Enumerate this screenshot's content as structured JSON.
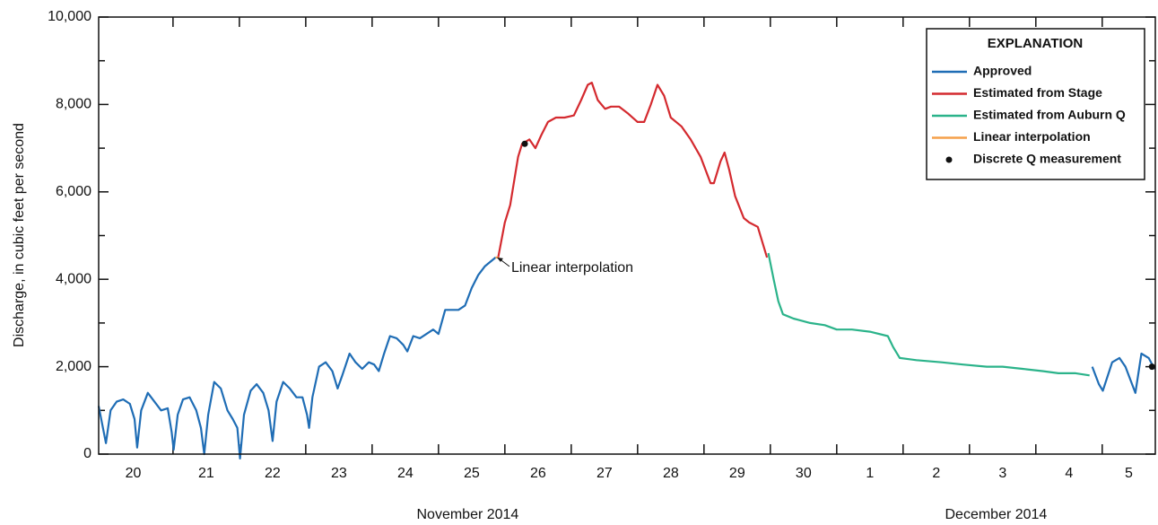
{
  "chart_data": {
    "type": "line",
    "y_label": "Discharge, in cubic feet per second",
    "x_groups": [
      "November 2014",
      "December 2014"
    ],
    "xlim": [
      19.88,
      35.8
    ],
    "xticks": [
      21,
      22,
      23,
      24,
      25,
      26,
      27,
      28,
      29,
      30,
      31,
      32,
      33,
      34,
      35
    ],
    "xtick_labels": [
      {
        "value": 20.4,
        "label": "20"
      },
      {
        "value": 21.5,
        "label": "21"
      },
      {
        "value": 22.5,
        "label": "22"
      },
      {
        "value": 23.5,
        "label": "23"
      },
      {
        "value": 24.5,
        "label": "24"
      },
      {
        "value": 25.5,
        "label": "25"
      },
      {
        "value": 26.5,
        "label": "26"
      },
      {
        "value": 27.5,
        "label": "27"
      },
      {
        "value": 28.5,
        "label": "28"
      },
      {
        "value": 29.5,
        "label": "29"
      },
      {
        "value": 30.5,
        "label": "30"
      },
      {
        "value": 31.5,
        "label": "1"
      },
      {
        "value": 32.5,
        "label": "2"
      },
      {
        "value": 33.5,
        "label": "3"
      },
      {
        "value": 34.5,
        "label": "4"
      },
      {
        "value": 35.4,
        "label": "5"
      }
    ],
    "ylim": [
      0,
      10000
    ],
    "yticks": [
      0,
      {
        "value": 2000,
        "label": "2,000"
      },
      {
        "value": 4000,
        "label": "4,000"
      },
      {
        "value": 6000,
        "label": "6,000"
      },
      {
        "value": 8000,
        "label": "8,000"
      },
      {
        "value": 10000,
        "label": "10,000"
      }
    ],
    "yminor": [
      1000,
      3000,
      5000,
      7000,
      9000
    ],
    "legend_title": "EXPLANATION",
    "legend": "upper right",
    "annotation": {
      "text": "Linear interpolation",
      "x": 25.88,
      "y": 4500
    },
    "series": [
      {
        "name": "Approved",
        "color": "#1f6db5",
        "style": "line",
        "x": [
          19.88,
          19.99,
          20.06,
          20.15,
          20.25,
          20.35,
          20.42,
          20.46,
          20.52,
          20.62,
          20.72,
          20.82,
          20.92,
          20.98,
          21.01,
          21.07,
          21.15,
          21.25,
          21.35,
          21.42,
          21.47,
          21.53,
          21.62,
          21.72,
          21.82,
          21.9,
          21.97,
          22.01,
          22.07,
          22.17,
          22.26,
          22.36,
          22.44,
          22.5,
          22.56,
          22.66,
          22.76,
          22.86,
          22.95,
          23.02,
          23.05,
          23.1,
          23.2,
          23.3,
          23.4,
          23.48,
          23.55,
          23.66,
          23.75,
          23.85,
          23.95,
          24.03,
          24.1,
          24.18,
          24.27,
          24.37,
          24.47,
          24.53,
          24.62,
          24.72,
          24.82,
          24.92,
          25.0,
          25.1,
          25.3,
          25.4,
          25.5,
          25.6,
          25.7,
          25.86,
          34.8,
          34.85,
          34.95,
          35.01,
          35.15,
          35.26,
          35.35,
          35.45,
          35.5,
          35.59,
          35.7,
          35.77,
          35.8
        ],
        "values": [
          1100,
          250,
          1000,
          1200,
          1250,
          1150,
          800,
          150,
          1000,
          1400,
          1200,
          1000,
          1050,
          500,
          100,
          900,
          1250,
          1300,
          1000,
          600,
          0,
          900,
          1650,
          1500,
          1000,
          800,
          600,
          -100,
          900,
          1450,
          1600,
          1400,
          1000,
          300,
          1200,
          1650,
          1500,
          1300,
          1300,
          900,
          600,
          1300,
          2000,
          2100,
          1900,
          1500,
          1800,
          2300,
          2100,
          1950,
          2100,
          2050,
          1900,
          2300,
          2700,
          2650,
          2500,
          2350,
          2700,
          2650,
          2750,
          2850,
          2750,
          3300,
          3300,
          3400,
          3800,
          4100,
          4300,
          4500,
          null,
          2000,
          1600,
          1450,
          2100,
          2200,
          2000,
          1600,
          1400,
          2300,
          2200,
          2000,
          1950
        ]
      },
      {
        "name": "Estimated from Stage",
        "color": "#d42a2f",
        "style": "line",
        "x": [
          25.9,
          26.0,
          26.08,
          26.2,
          26.26,
          26.37,
          26.46,
          26.55,
          26.65,
          26.77,
          26.9,
          27.04,
          27.15,
          27.25,
          27.31,
          27.4,
          27.51,
          27.6,
          27.72,
          27.85,
          28.0,
          28.1,
          28.2,
          28.3,
          28.4,
          28.5,
          28.66,
          28.8,
          28.95,
          29.1,
          29.15,
          29.25,
          29.31,
          29.38,
          29.47,
          29.6,
          29.68,
          29.81,
          29.95
        ],
        "values": [
          4500,
          5300,
          5700,
          6800,
          7100,
          7200,
          7000,
          7300,
          7600,
          7700,
          7700,
          7750,
          8100,
          8450,
          8500,
          8100,
          7900,
          7950,
          7950,
          7800,
          7600,
          7600,
          8000,
          8450,
          8200,
          7700,
          7500,
          7200,
          6800,
          6200,
          6200,
          6700,
          6900,
          6500,
          5900,
          5400,
          5300,
          5200,
          4500
        ]
      },
      {
        "name": "Estimated from Auburn Q",
        "color": "#2bb38a",
        "style": "line",
        "x": [
          29.97,
          30.05,
          30.12,
          30.19,
          30.35,
          30.6,
          30.82,
          31.0,
          31.23,
          31.5,
          31.77,
          31.85,
          31.95,
          32.2,
          32.58,
          32.9,
          33.26,
          33.5,
          33.8,
          34.1,
          34.34,
          34.6,
          34.81
        ],
        "values": [
          4600,
          4000,
          3500,
          3200,
          3100,
          3000,
          2950,
          2850,
          2850,
          2800,
          2700,
          2450,
          2200,
          2150,
          2100,
          2050,
          2000,
          2000,
          1950,
          1900,
          1850,
          1850,
          1800
        ]
      },
      {
        "name": "Linear interpolation",
        "color": "#f5a04a",
        "style": "line",
        "x": [
          25.86,
          25.9
        ],
        "values": [
          4500,
          4500
        ]
      },
      {
        "name": "Discrete Q measurement",
        "color": "#111111",
        "style": "marker",
        "x": [
          26.3,
          35.75
        ],
        "values": [
          7100,
          2000
        ]
      }
    ]
  }
}
